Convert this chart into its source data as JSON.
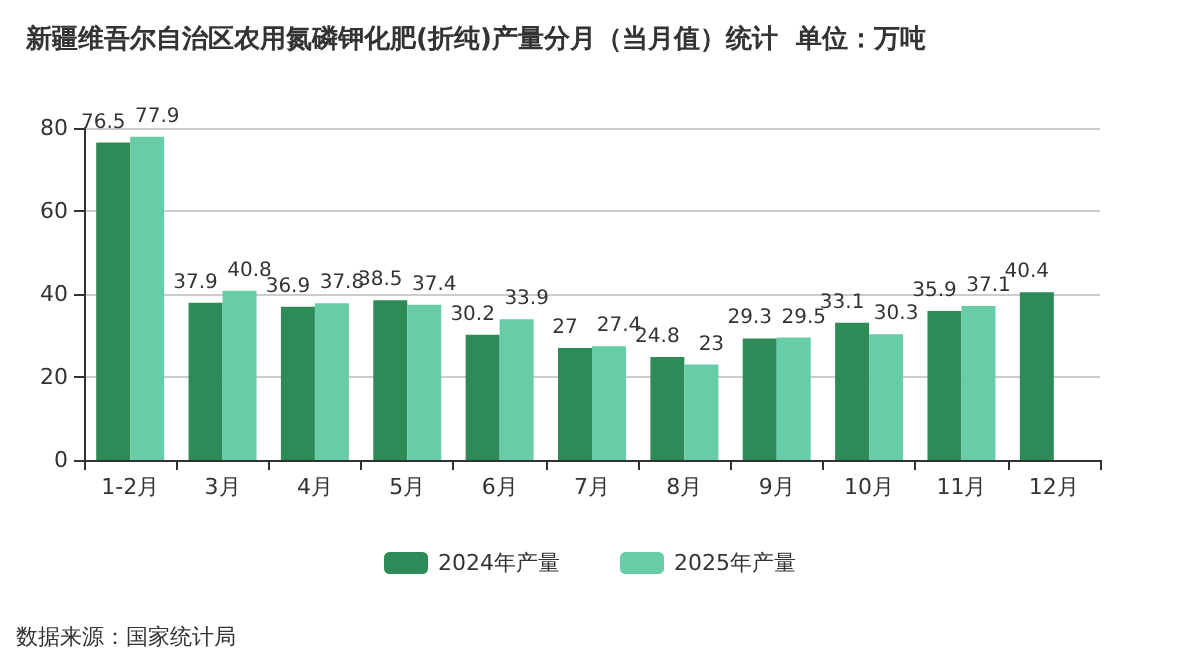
{
  "chart_data": {
    "type": "bar",
    "title": "新疆维吾尔自治区农用氮磷钾化肥(折纯)产量分月（当月值）统计  单位：万吨",
    "categories": [
      "1-2月",
      "3月",
      "4月",
      "5月",
      "6月",
      "7月",
      "8月",
      "9月",
      "10月",
      "11月",
      "12月"
    ],
    "series": [
      {
        "name": "2024年产量",
        "color": "#2e8b57",
        "values": [
          76.5,
          37.9,
          36.9,
          38.5,
          30.2,
          27,
          24.8,
          29.3,
          33.1,
          35.9,
          40.4
        ]
      },
      {
        "name": "2025年产量",
        "color": "#66cda6",
        "values": [
          77.9,
          40.8,
          37.8,
          37.4,
          33.9,
          27.4,
          23,
          29.5,
          30.3,
          37.1,
          null
        ]
      }
    ],
    "ylim": [
      0,
      80
    ],
    "yticks": [
      0,
      20,
      40,
      60,
      80
    ],
    "grid": "y",
    "legend": "bottom",
    "data_labels": true,
    "annotations": [
      "数据来源：国家统计局"
    ]
  }
}
